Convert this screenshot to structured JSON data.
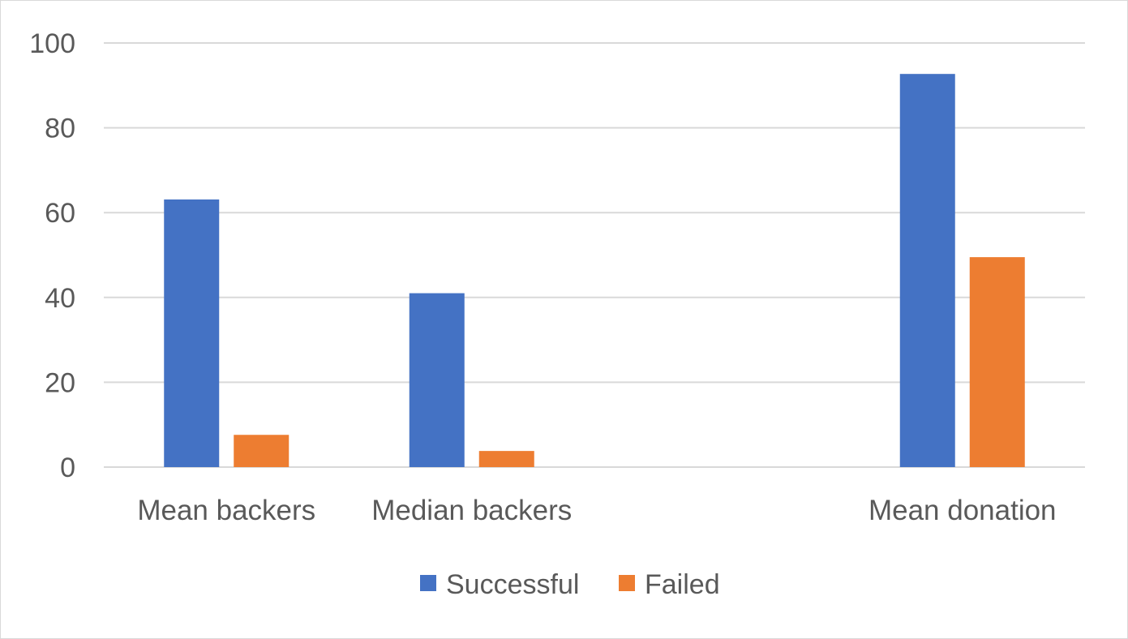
{
  "chart_data": {
    "type": "bar",
    "title": "",
    "xlabel": "",
    "ylabel": "",
    "categories": [
      "Mean backers",
      "Median backers",
      "",
      "Mean donation"
    ],
    "series": [
      {
        "name": "Successful",
        "color": "#4472C4",
        "values": [
          63.1,
          41.0,
          null,
          92.7
        ]
      },
      {
        "name": "Failed",
        "color": "#ED7D31",
        "values": [
          7.6,
          3.8,
          null,
          49.5
        ]
      }
    ],
    "ylim": [
      0,
      100
    ],
    "yticks": [
      0,
      20,
      40,
      60,
      80,
      100
    ],
    "grid": true,
    "legend_position": "bottom"
  }
}
